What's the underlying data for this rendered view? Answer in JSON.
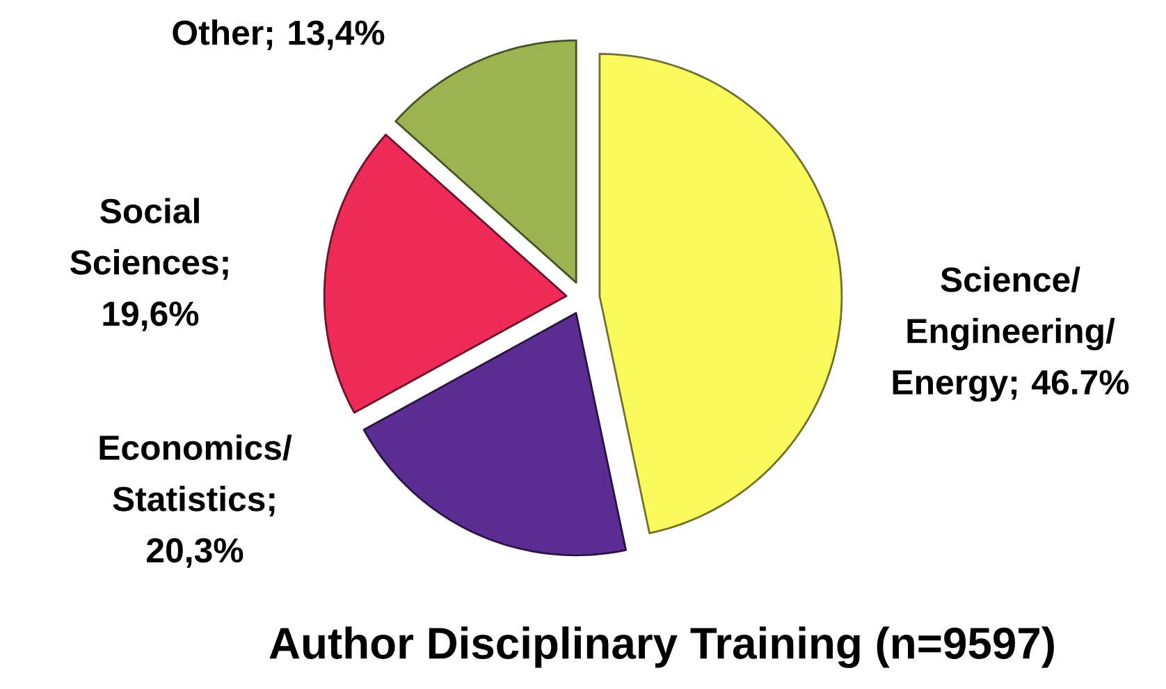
{
  "chart_data": {
    "type": "pie",
    "title": "Author Disciplinary Training (n=9597)",
    "categories": [
      "Science/Engineering/Energy; 46.7%",
      "Economics/Statistics; 20,3%",
      "Social Sciences; 19,6%",
      "Other; 13,4%"
    ],
    "values": [
      46.7,
      20.3,
      19.6,
      13.4
    ],
    "colors": [
      "#fafa5f",
      "#5b2c91",
      "#ee2a58",
      "#9bb350"
    ]
  }
}
